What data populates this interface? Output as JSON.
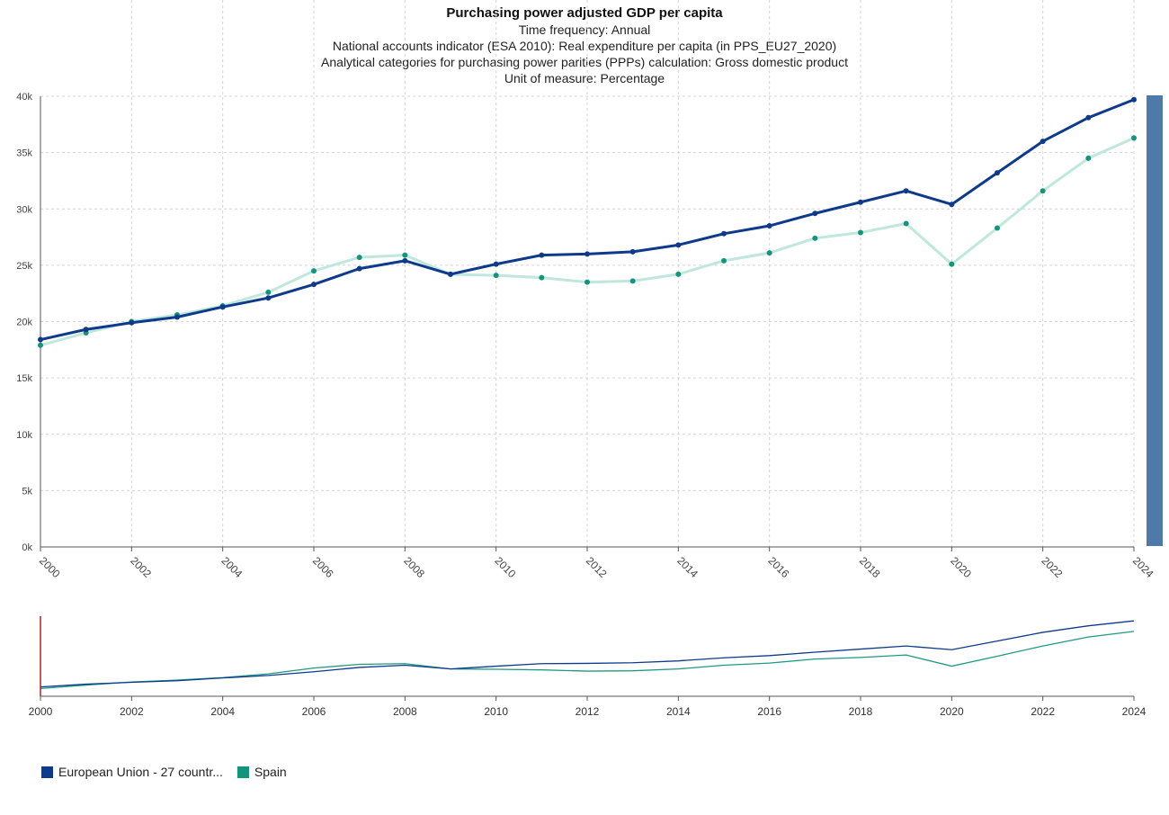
{
  "colors": {
    "eu": "#0e3a8c",
    "spain_marker": "#12957a",
    "spain_line": "#bfe7dc",
    "spain_nav": "#1f9a80",
    "grid": "#d4d4d4",
    "axis": "#555555",
    "scrollbar": "#4f79a8",
    "navigator_handle": "#b22222"
  },
  "chart_data": {
    "type": "line",
    "title": "Purchasing power adjusted GDP per capita",
    "subtitles": [
      "Time frequency:  Annual",
      "National accounts indicator (ESA 2010):  Real expenditure per capita (in PPS_EU27_2020)",
      "Analytical categories for purchasing power parities (PPPs) calculation:  Gross domestic product",
      "Unit of measure:  Percentage"
    ],
    "x": [
      2000,
      2001,
      2002,
      2003,
      2004,
      2005,
      2006,
      2007,
      2008,
      2009,
      2010,
      2011,
      2012,
      2013,
      2014,
      2015,
      2016,
      2017,
      2018,
      2019,
      2020,
      2021,
      2022,
      2023,
      2024
    ],
    "xlim": [
      2000,
      2024
    ],
    "ylim": [
      0,
      40000
    ],
    "y_ticks": [
      {
        "value": 0,
        "label": "0k"
      },
      {
        "value": 5000,
        "label": "5k"
      },
      {
        "value": 10000,
        "label": "10k"
      },
      {
        "value": 15000,
        "label": "15k"
      },
      {
        "value": 20000,
        "label": "20k"
      },
      {
        "value": 25000,
        "label": "25k"
      },
      {
        "value": 30000,
        "label": "30k"
      },
      {
        "value": 35000,
        "label": "35k"
      },
      {
        "value": 40000,
        "label": "40k"
      }
    ],
    "x_tick_labels": [
      "2000",
      "2002",
      "2004",
      "2006",
      "2008",
      "2010",
      "2012",
      "2014",
      "2016",
      "2018",
      "2020",
      "2022",
      "2024"
    ],
    "grid": true,
    "legend_position": "bottom-left",
    "series": [
      {
        "name": "European Union - 27 countr...",
        "values": [
          18400,
          19300,
          19900,
          20400,
          21300,
          22100,
          23300,
          24700,
          25400,
          24200,
          25100,
          25900,
          26000,
          26200,
          26800,
          27800,
          28500,
          29600,
          30600,
          31600,
          30400,
          33200,
          36000,
          38100,
          39700
        ]
      },
      {
        "name": "Spain",
        "values": [
          17900,
          19000,
          20000,
          20600,
          21400,
          22600,
          24500,
          25700,
          25900,
          24200,
          24100,
          23900,
          23500,
          23600,
          24200,
          25400,
          26100,
          27400,
          27900,
          28700,
          25100,
          28300,
          31600,
          34500,
          36300
        ]
      }
    ]
  }
}
